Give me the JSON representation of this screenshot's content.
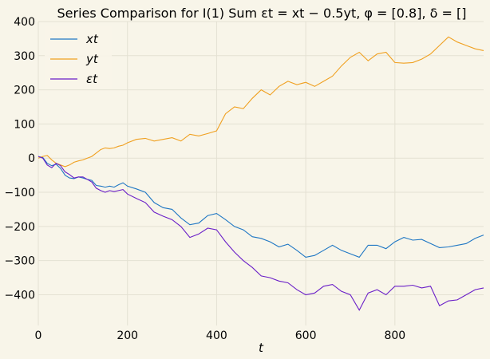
{
  "chart_data": {
    "type": "line",
    "title": "Series Comparison for I(1) Sum εt = xt − 0.5yt, φ = [0.8], δ = []",
    "xlabel": "t",
    "ylabel": "",
    "xlim": [
      0,
      999
    ],
    "ylim": [
      -490,
      400
    ],
    "x_ticks": [
      0,
      200,
      400,
      600,
      800
    ],
    "y_ticks": [
      -400,
      -300,
      -200,
      -100,
      0,
      100,
      200,
      300,
      400
    ],
    "grid": true,
    "legend_position": "top-left",
    "series": [
      {
        "name": "xt",
        "color": "#1f77c4",
        "x": [
          0,
          10,
          20,
          30,
          40,
          50,
          60,
          70,
          80,
          90,
          100,
          110,
          120,
          130,
          140,
          150,
          160,
          170,
          180,
          190,
          200,
          220,
          240,
          260,
          280,
          300,
          320,
          340,
          360,
          380,
          400,
          420,
          440,
          460,
          480,
          500,
          520,
          540,
          560,
          580,
          600,
          620,
          640,
          660,
          680,
          700,
          720,
          740,
          760,
          780,
          800,
          820,
          840,
          860,
          880,
          900,
          920,
          940,
          960,
          980,
          999
        ],
        "values": [
          5,
          2,
          -15,
          -22,
          -18,
          -30,
          -50,
          -58,
          -60,
          -55,
          -58,
          -62,
          -65,
          -80,
          -82,
          -85,
          -82,
          -85,
          -78,
          -72,
          -82,
          -90,
          -100,
          -130,
          -145,
          -150,
          -175,
          -195,
          -190,
          -168,
          -162,
          -180,
          -200,
          -210,
          -230,
          -235,
          -245,
          -260,
          -252,
          -270,
          -290,
          -285,
          -270,
          -255,
          -270,
          -280,
          -290,
          -255,
          -255,
          -265,
          -245,
          -232,
          -240,
          -238,
          -250,
          -262,
          -260,
          -255,
          -250,
          -235,
          -225
        ]
      },
      {
        "name": "yt",
        "color": "#f0a020",
        "x": [
          0,
          10,
          20,
          30,
          40,
          50,
          60,
          70,
          80,
          90,
          100,
          110,
          120,
          130,
          140,
          150,
          160,
          170,
          180,
          190,
          200,
          220,
          240,
          260,
          280,
          300,
          320,
          340,
          360,
          380,
          400,
          420,
          440,
          460,
          480,
          500,
          520,
          540,
          560,
          580,
          600,
          620,
          640,
          660,
          680,
          700,
          720,
          740,
          760,
          780,
          800,
          820,
          840,
          860,
          880,
          900,
          920,
          940,
          960,
          980,
          999
        ],
        "values": [
          0,
          5,
          8,
          -5,
          -15,
          -20,
          -25,
          -20,
          -12,
          -8,
          -5,
          0,
          5,
          15,
          25,
          30,
          28,
          30,
          35,
          38,
          45,
          55,
          58,
          50,
          55,
          60,
          50,
          70,
          65,
          72,
          80,
          130,
          150,
          145,
          175,
          200,
          185,
          210,
          225,
          215,
          222,
          210,
          225,
          240,
          270,
          295,
          310,
          285,
          305,
          310,
          280,
          278,
          280,
          290,
          305,
          330,
          355,
          340,
          330,
          320,
          315
        ]
      },
      {
        "name": "εt",
        "color": "#6a1fc8",
        "x": [
          0,
          10,
          20,
          30,
          40,
          50,
          60,
          70,
          80,
          90,
          100,
          110,
          120,
          130,
          140,
          150,
          160,
          170,
          180,
          190,
          200,
          220,
          240,
          260,
          280,
          300,
          320,
          340,
          360,
          380,
          400,
          420,
          440,
          460,
          480,
          500,
          520,
          540,
          560,
          580,
          600,
          620,
          640,
          660,
          680,
          700,
          720,
          740,
          760,
          780,
          800,
          820,
          840,
          860,
          880,
          900,
          920,
          940,
          960,
          980,
          999
        ],
        "values": [
          5,
          0,
          -20,
          -28,
          -15,
          -22,
          -40,
          -48,
          -58,
          -55,
          -55,
          -62,
          -70,
          -88,
          -95,
          -100,
          -95,
          -98,
          -95,
          -92,
          -105,
          -118,
          -130,
          -158,
          -170,
          -180,
          -200,
          -232,
          -222,
          -205,
          -210,
          -245,
          -275,
          -300,
          -320,
          -345,
          -350,
          -360,
          -365,
          -385,
          -400,
          -395,
          -375,
          -370,
          -390,
          -400,
          -445,
          -395,
          -385,
          -400,
          -375,
          -375,
          -372,
          -380,
          -375,
          -432,
          -418,
          -415,
          -400,
          -385,
          -380
        ]
      }
    ]
  }
}
